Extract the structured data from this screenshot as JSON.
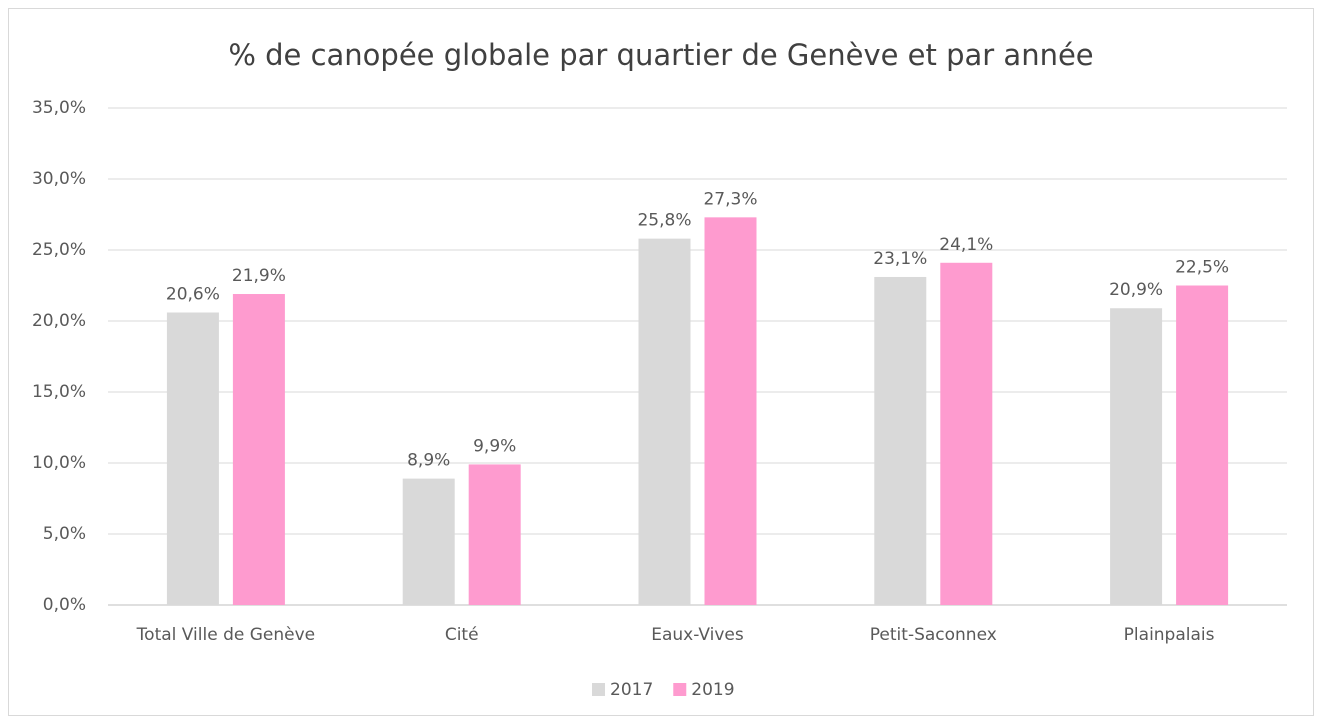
{
  "chart_data": {
    "type": "bar",
    "title": "% de canopée globale par quartier de Genève et par année",
    "categories": [
      "Total Ville de Genève",
      "Cité",
      "Eaux-Vives",
      "Petit-Saconnex",
      "Plainpalais"
    ],
    "series": [
      {
        "name": "2017",
        "color": "#d9d9d9",
        "values": [
          20.6,
          8.9,
          25.8,
          23.1,
          20.9
        ],
        "value_labels": [
          "20,6%",
          "8,9%",
          "25,8%",
          "23,1%",
          "20,9%"
        ]
      },
      {
        "name": "2019",
        "color": "#fe9bcf",
        "values": [
          21.9,
          9.9,
          27.3,
          24.1,
          22.5
        ],
        "value_labels": [
          "21,9%",
          "9,9%",
          "27,3%",
          "24,1%",
          "22,5%"
        ]
      }
    ],
    "ylim": [
      0,
      35
    ],
    "yticks": [
      {
        "value": 0,
        "label": "0,0%"
      },
      {
        "value": 5,
        "label": "5,0%"
      },
      {
        "value": 10,
        "label": "10,0%"
      },
      {
        "value": 15,
        "label": "15,0%"
      },
      {
        "value": 20,
        "label": "20,0%"
      },
      {
        "value": 25,
        "label": "25,0%"
      },
      {
        "value": 30,
        "label": "30,0%"
      },
      {
        "value": 35,
        "label": "35,0%"
      }
    ],
    "grid": true,
    "legend": "bottom"
  }
}
